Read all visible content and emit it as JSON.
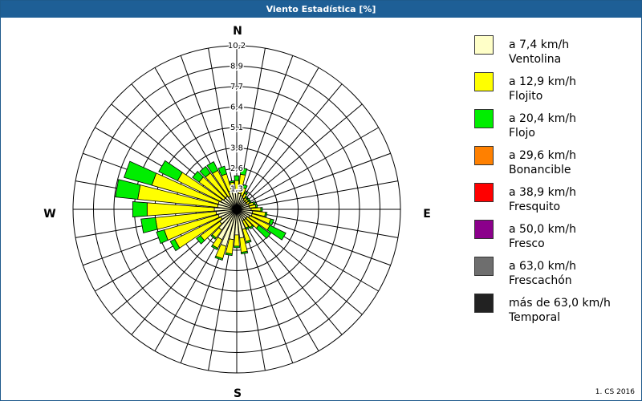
{
  "window": {
    "title": "Viento Estadística [%]"
  },
  "footer": {
    "text": "1. CS 2016"
  },
  "colors": {
    "ventolina": "#ffffc8",
    "flojito": "#ffff00",
    "flojo": "#00ee00",
    "bonancible": "#ff8000",
    "fresquito": "#ff0000",
    "fresco": "#8b008b",
    "frescachon": "#6e6e6e",
    "temporal": "#222222"
  },
  "legend": [
    {
      "range": "a 7,4 km/h",
      "name": "Ventolina",
      "color": "#ffffc8"
    },
    {
      "range": "a 12,9 km/h",
      "name": "Flojito",
      "color": "#ffff00"
    },
    {
      "range": "a 20,4 km/h",
      "name": "Flojo",
      "color": "#00ee00"
    },
    {
      "range": "a 29,6 km/h",
      "name": "Bonancible",
      "color": "#ff8000"
    },
    {
      "range": "a 38,9 km/h",
      "name": "Fresquito",
      "color": "#ff0000"
    },
    {
      "range": "a 50,0 km/h",
      "name": "Fresco",
      "color": "#8b008b"
    },
    {
      "range": "a 63,0 km/h",
      "name": "Frescachón",
      "color": "#6e6e6e"
    },
    {
      "range": "más de 63,0 km/h",
      "name": "Temporal",
      "color": "#222222"
    }
  ],
  "chart_data": {
    "type": "windrose",
    "title": "Viento Estadística [%]",
    "unit": "%",
    "compass": [
      "N",
      "E",
      "S",
      "W"
    ],
    "ring_labels": [
      "1,3",
      "2,6",
      "3,8",
      "5,1",
      "6,4",
      "7,7",
      "8,9",
      "10,2"
    ],
    "max_value": 10.2,
    "directions": [
      0,
      10,
      20,
      30,
      40,
      50,
      60,
      70,
      80,
      90,
      100,
      110,
      120,
      130,
      140,
      150,
      160,
      170,
      180,
      190,
      200,
      210,
      220,
      230,
      240,
      250,
      260,
      270,
      280,
      290,
      300,
      310,
      320,
      330,
      340,
      350
    ],
    "series": [
      {
        "name": "Ventolina",
        "values": [
          1.2,
          1.0,
          0.9,
          0.8,
          0.7,
          0.7,
          0.7,
          0.8,
          0.8,
          0.9,
          1.0,
          1.0,
          0.9,
          0.8,
          0.8,
          0.8,
          1.3,
          1.8,
          1.6,
          1.9,
          2.4,
          2.1,
          1.6,
          1.3,
          1.1,
          1.2,
          1.3,
          1.4,
          1.2,
          1.2,
          1.1,
          1.0,
          1.0,
          0.9,
          1.2,
          1.1
        ]
      },
      {
        "name": "Flojito",
        "values": [
          0.6,
          1.2,
          0.5,
          0.3,
          0.2,
          0.2,
          0.2,
          0.3,
          0.4,
          0.6,
          0.8,
          1.2,
          1.4,
          0.9,
          0.6,
          0.5,
          0.8,
          0.9,
          0.7,
          0.9,
          0.8,
          0.6,
          0.6,
          1.5,
          3.2,
          3.5,
          3.8,
          4.2,
          5.0,
          4.3,
          3.0,
          1.9,
          1.8,
          1.8,
          1.1,
          0.6
        ]
      },
      {
        "name": "Flojo",
        "values": [
          0.3,
          0.4,
          0.2,
          0.1,
          0.1,
          0.1,
          0.1,
          0.1,
          0.1,
          0.1,
          0.1,
          0.2,
          1.1,
          0.9,
          0.1,
          0.1,
          0.1,
          0.1,
          0.1,
          0.1,
          0.1,
          0.1,
          0.1,
          0.3,
          0.3,
          0.5,
          0.9,
          0.9,
          1.4,
          1.8,
          1.3,
          0.5,
          0.5,
          0.6,
          0.5,
          0.1
        ]
      },
      {
        "name": "Bonancible",
        "values": [
          0,
          0,
          0,
          0,
          0,
          0,
          0,
          0,
          0,
          0,
          0,
          0,
          0,
          0,
          0,
          0,
          0,
          0,
          0,
          0,
          0,
          0,
          0,
          0,
          0,
          0,
          0,
          0,
          0,
          0,
          0,
          0,
          0,
          0,
          0,
          0
        ]
      },
      {
        "name": "Fresquito",
        "values": [
          0,
          0,
          0,
          0,
          0,
          0,
          0,
          0,
          0,
          0,
          0,
          0,
          0,
          0,
          0,
          0,
          0,
          0,
          0,
          0,
          0,
          0,
          0,
          0,
          0,
          0,
          0,
          0,
          0,
          0,
          0,
          0,
          0,
          0,
          0,
          0
        ]
      },
      {
        "name": "Fresco",
        "values": [
          0,
          0,
          0,
          0,
          0,
          0,
          0,
          0,
          0,
          0,
          0,
          0,
          0,
          0,
          0,
          0,
          0,
          0,
          0,
          0,
          0,
          0,
          0,
          0,
          0,
          0,
          0,
          0,
          0,
          0,
          0,
          0,
          0,
          0,
          0,
          0
        ]
      },
      {
        "name": "Frescachón",
        "values": [
          0,
          0,
          0,
          0,
          0,
          0,
          0,
          0,
          0,
          0,
          0,
          0,
          0,
          0,
          0,
          0,
          0,
          0,
          0,
          0,
          0,
          0,
          0,
          0,
          0,
          0,
          0,
          0,
          0,
          0,
          0,
          0,
          0,
          0,
          0,
          0
        ]
      },
      {
        "name": "Temporal",
        "values": [
          0,
          0,
          0,
          0,
          0,
          0,
          0,
          0,
          0,
          0,
          0,
          0,
          0,
          0,
          0,
          0,
          0,
          0,
          0,
          0,
          0,
          0,
          0,
          0,
          0,
          0,
          0,
          0,
          0,
          0,
          0,
          0,
          0,
          0,
          0,
          0
        ]
      }
    ]
  }
}
